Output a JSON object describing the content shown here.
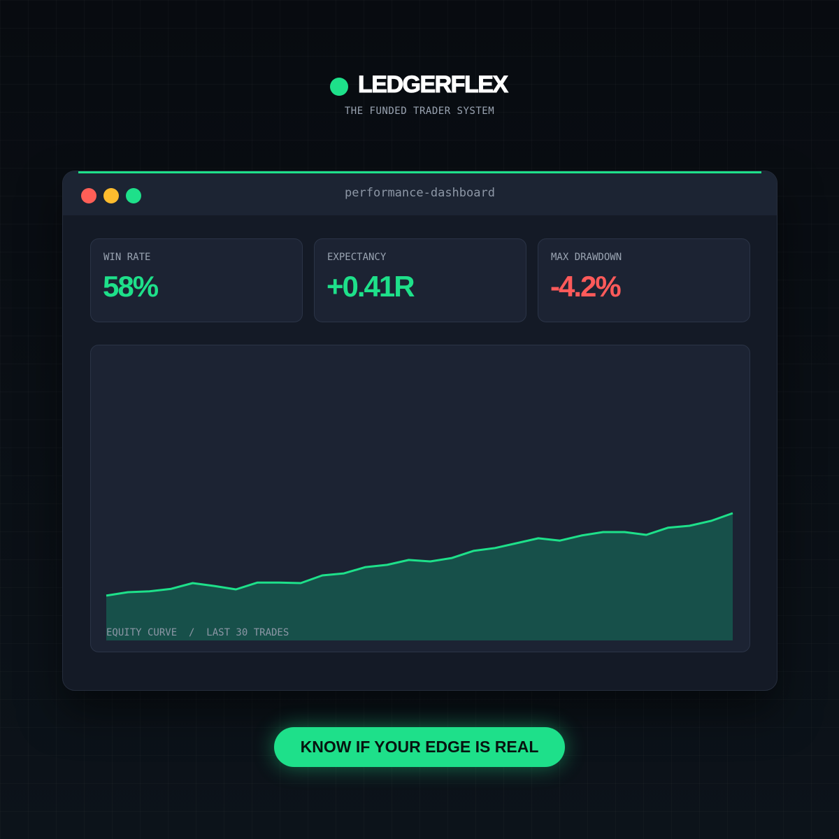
{
  "header": {
    "brand": "LEDGERFLEX",
    "tagline": "THE FUNDED TRADER SYSTEM"
  },
  "window": {
    "title": "performance-dashboard"
  },
  "stats": [
    {
      "label": "WIN RATE",
      "value": "58%",
      "color": "#1ee08a"
    },
    {
      "label": "EXPECTANCY",
      "value": "+0.41R",
      "color": "#1ee08a"
    },
    {
      "label": "MAX DRAWDOWN",
      "value": "-4.2%",
      "color": "#ff5a5a"
    }
  ],
  "chart": {
    "type": "area",
    "label": "EQUITY CURVE  /  LAST 30 TRADES",
    "color": "#1ee08a",
    "fill": "#17504a",
    "ylim": [
      0,
      100
    ],
    "values": [
      15.7,
      16.9,
      17.2,
      18.1,
      20.1,
      19.1,
      17.9,
      20.3,
      20.3,
      20.1,
      22.8,
      23.5,
      25.7,
      26.5,
      28.2,
      27.7,
      28.9,
      31.4,
      32.4,
      34.1,
      35.8,
      35.0,
      36.8,
      38.0,
      38.0,
      37.0,
      39.5,
      40.2,
      41.9,
      44.6
    ]
  },
  "cta": {
    "label": "KNOW IF YOUR EDGE IS REAL"
  }
}
